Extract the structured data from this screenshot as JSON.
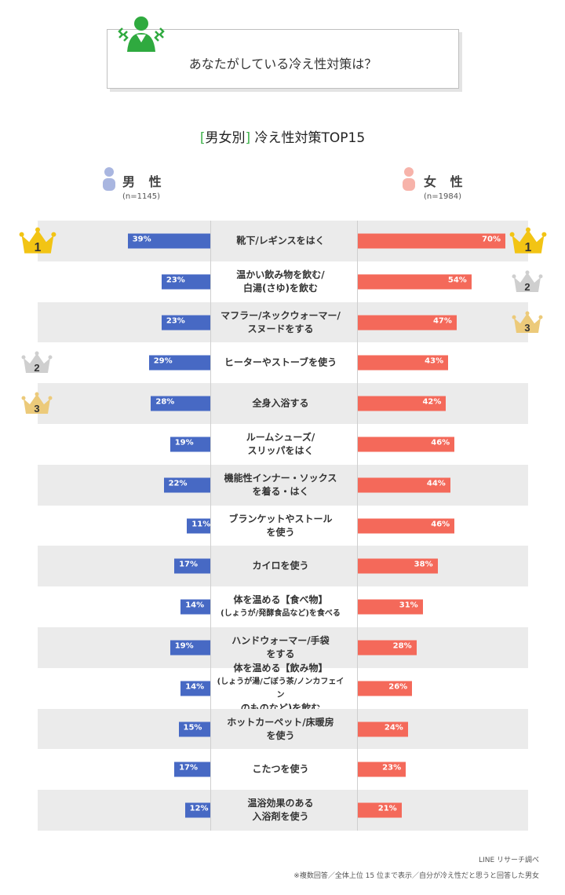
{
  "question": "あなたがしている冷え性対策は？",
  "subtitle": {
    "bracket_open": "[",
    "bracket_label": "男女別",
    "bracket_close": "]",
    "main": " 冷え性対策TOP15"
  },
  "male": {
    "label": "男 性",
    "n": "(n=1145)",
    "color": "#4769c4"
  },
  "female": {
    "label": "女 性",
    "n": "(n=1984)",
    "color": "#f4695a"
  },
  "chart_data": {
    "type": "bar",
    "categories": [
      [
        "靴下/レギンスをはく"
      ],
      [
        "温かい飲み物を飲む/",
        "白湯(さゆ)を飲む"
      ],
      [
        "マフラー/ネックウォーマー/",
        "スヌードをする"
      ],
      [
        "ヒーターやストーブを使う"
      ],
      [
        "全身入浴する"
      ],
      [
        "ルームシューズ/",
        "スリッパをはく"
      ],
      [
        "機能性インナー・ソックス",
        "を着る・はく"
      ],
      [
        "ブランケットやストール",
        "を使う"
      ],
      [
        "カイロを使う"
      ],
      [
        "体を温める【食べ物】",
        "(しょうが/発酵食品など)を食べる"
      ],
      [
        "ハンドウォーマー/手袋",
        "をする"
      ],
      [
        "体を温める【飲み物】",
        "(しょうが湯/ごぼう茶/ノンカフェイン",
        "のものなど)を飲む"
      ],
      [
        "ホットカーペット/床暖房",
        "を使う"
      ],
      [
        "こたつを使う"
      ],
      [
        "温浴効果のある",
        "入浴剤を使う"
      ]
    ],
    "series": [
      {
        "name": "男 性",
        "values": [
          39,
          23,
          23,
          29,
          28,
          19,
          22,
          11,
          17,
          14,
          19,
          14,
          15,
          17,
          12
        ]
      },
      {
        "name": "女 性",
        "values": [
          70,
          54,
          47,
          43,
          42,
          46,
          44,
          46,
          38,
          31,
          28,
          26,
          24,
          23,
          21
        ]
      }
    ],
    "unit": "%",
    "male_ranks": [
      [
        "1",
        0
      ],
      [
        "2",
        3
      ],
      [
        "3",
        4
      ]
    ],
    "female_ranks": [
      [
        "1",
        0
      ],
      [
        "2",
        1
      ],
      [
        "3",
        2
      ]
    ]
  },
  "footer": {
    "source": "LINE リサーチ調べ",
    "note": "※複数回答／全体上位 15 位まで表示／自分が冷え性だと思うと回答した男女"
  }
}
